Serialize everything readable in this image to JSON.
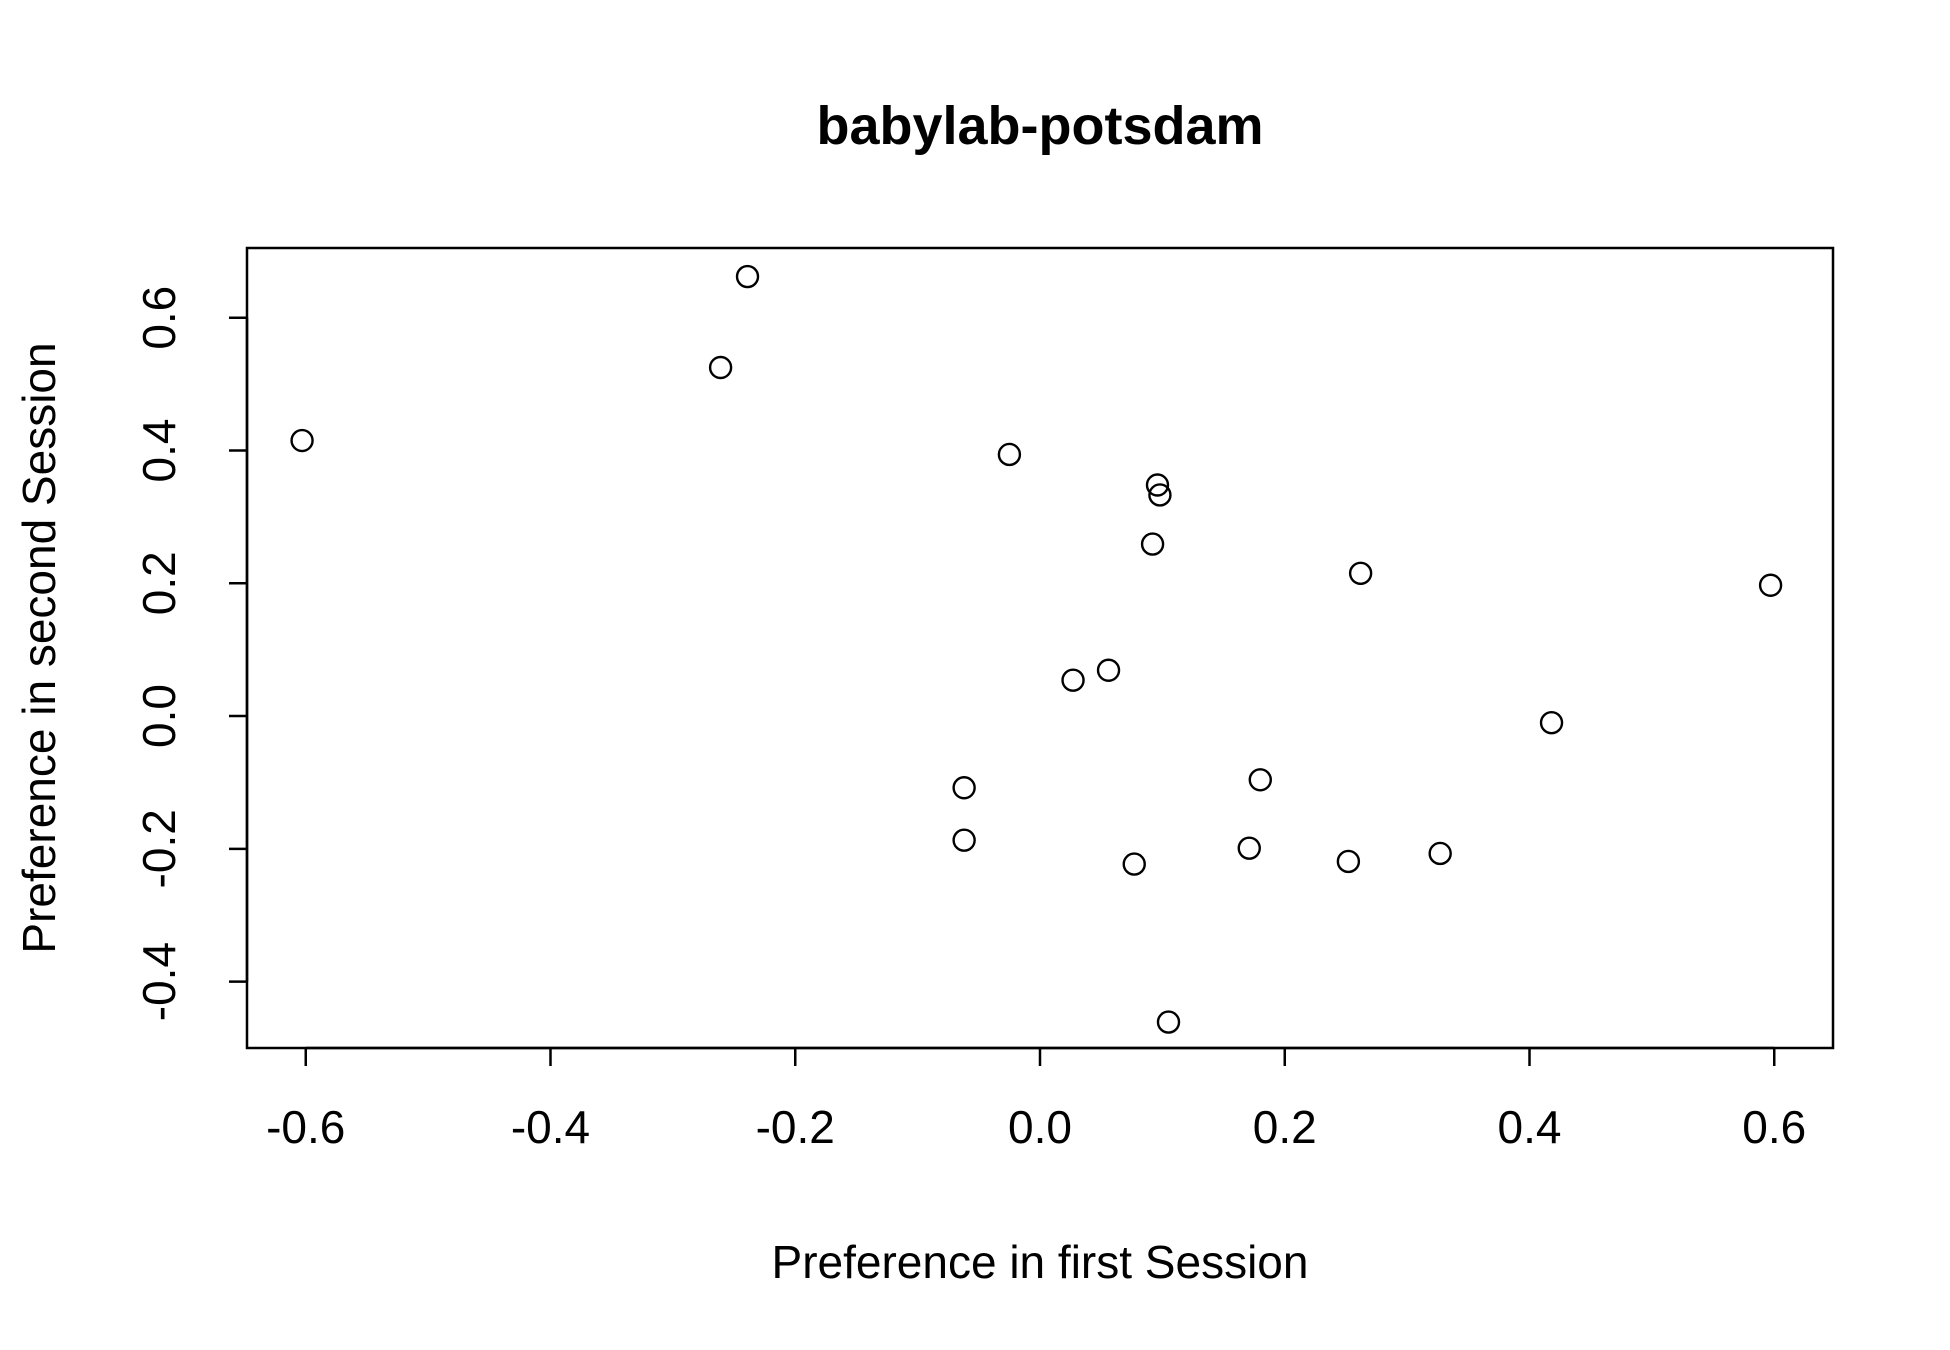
{
  "chart_data": {
    "type": "scatter",
    "title": "babylab-potsdam",
    "xlabel": "Preference in first Session",
    "ylabel": "Preference in second Session",
    "xlim": [
      -0.648,
      0.648
    ],
    "ylim": [
      -0.5,
      0.705
    ],
    "xticks": [
      -0.6,
      -0.4,
      -0.2,
      0.0,
      0.2,
      0.4,
      0.6
    ],
    "xtick_labels": [
      "-0.6",
      "-0.4",
      "-0.2",
      "0.0",
      "0.2",
      "0.4",
      "0.6"
    ],
    "yticks": [
      -0.4,
      -0.2,
      0.0,
      0.2,
      0.4,
      0.6
    ],
    "ytick_labels": [
      "-0.4",
      "-0.2",
      "0.0",
      "0.2",
      "0.4",
      "0.6"
    ],
    "grid": false,
    "marker": "open-circle",
    "point_color": "#000000",
    "points": [
      {
        "x": -0.603,
        "y": 0.415
      },
      {
        "x": -0.261,
        "y": 0.525
      },
      {
        "x": -0.239,
        "y": 0.662
      },
      {
        "x": -0.025,
        "y": 0.394
      },
      {
        "x": 0.096,
        "y": 0.348
      },
      {
        "x": 0.098,
        "y": 0.333
      },
      {
        "x": 0.092,
        "y": 0.259
      },
      {
        "x": 0.262,
        "y": 0.215
      },
      {
        "x": 0.597,
        "y": 0.197
      },
      {
        "x": 0.056,
        "y": 0.069
      },
      {
        "x": 0.027,
        "y": 0.054
      },
      {
        "x": 0.418,
        "y": -0.01
      },
      {
        "x": -0.062,
        "y": -0.108
      },
      {
        "x": 0.18,
        "y": -0.096
      },
      {
        "x": -0.062,
        "y": -0.187
      },
      {
        "x": 0.077,
        "y": -0.223
      },
      {
        "x": 0.171,
        "y": -0.199
      },
      {
        "x": 0.252,
        "y": -0.219
      },
      {
        "x": 0.327,
        "y": -0.207
      },
      {
        "x": 0.105,
        "y": -0.461
      }
    ]
  }
}
